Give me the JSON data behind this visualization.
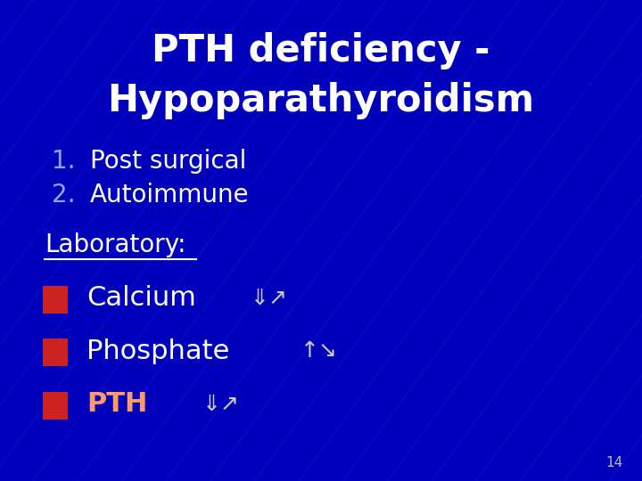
{
  "title_line1": "PTH deficiency -",
  "title_line2": "Hypoparathyroidism",
  "title_color": "#ffffff",
  "title_fontsize": 30,
  "bg_color": "#0000bb",
  "numbered_items": [
    "Post surgical",
    "Autoimmune"
  ],
  "numbered_color": "#ffffff",
  "number_color": "#88aaff",
  "numbered_fontsize": 20,
  "lab_label": "Laboratory:",
  "lab_color": "#ffffff",
  "lab_fontsize": 20,
  "bullet_items": [
    "Calcium",
    "Phosphate",
    "PTH"
  ],
  "bullet_colors": [
    "#ffffff",
    "#ffffff",
    "#ff9966"
  ],
  "bullet_fontsize": 22,
  "bullet_square_color": "#cc2222",
  "page_number": "14",
  "page_number_color": "#bbbbbb",
  "page_number_fontsize": 11
}
